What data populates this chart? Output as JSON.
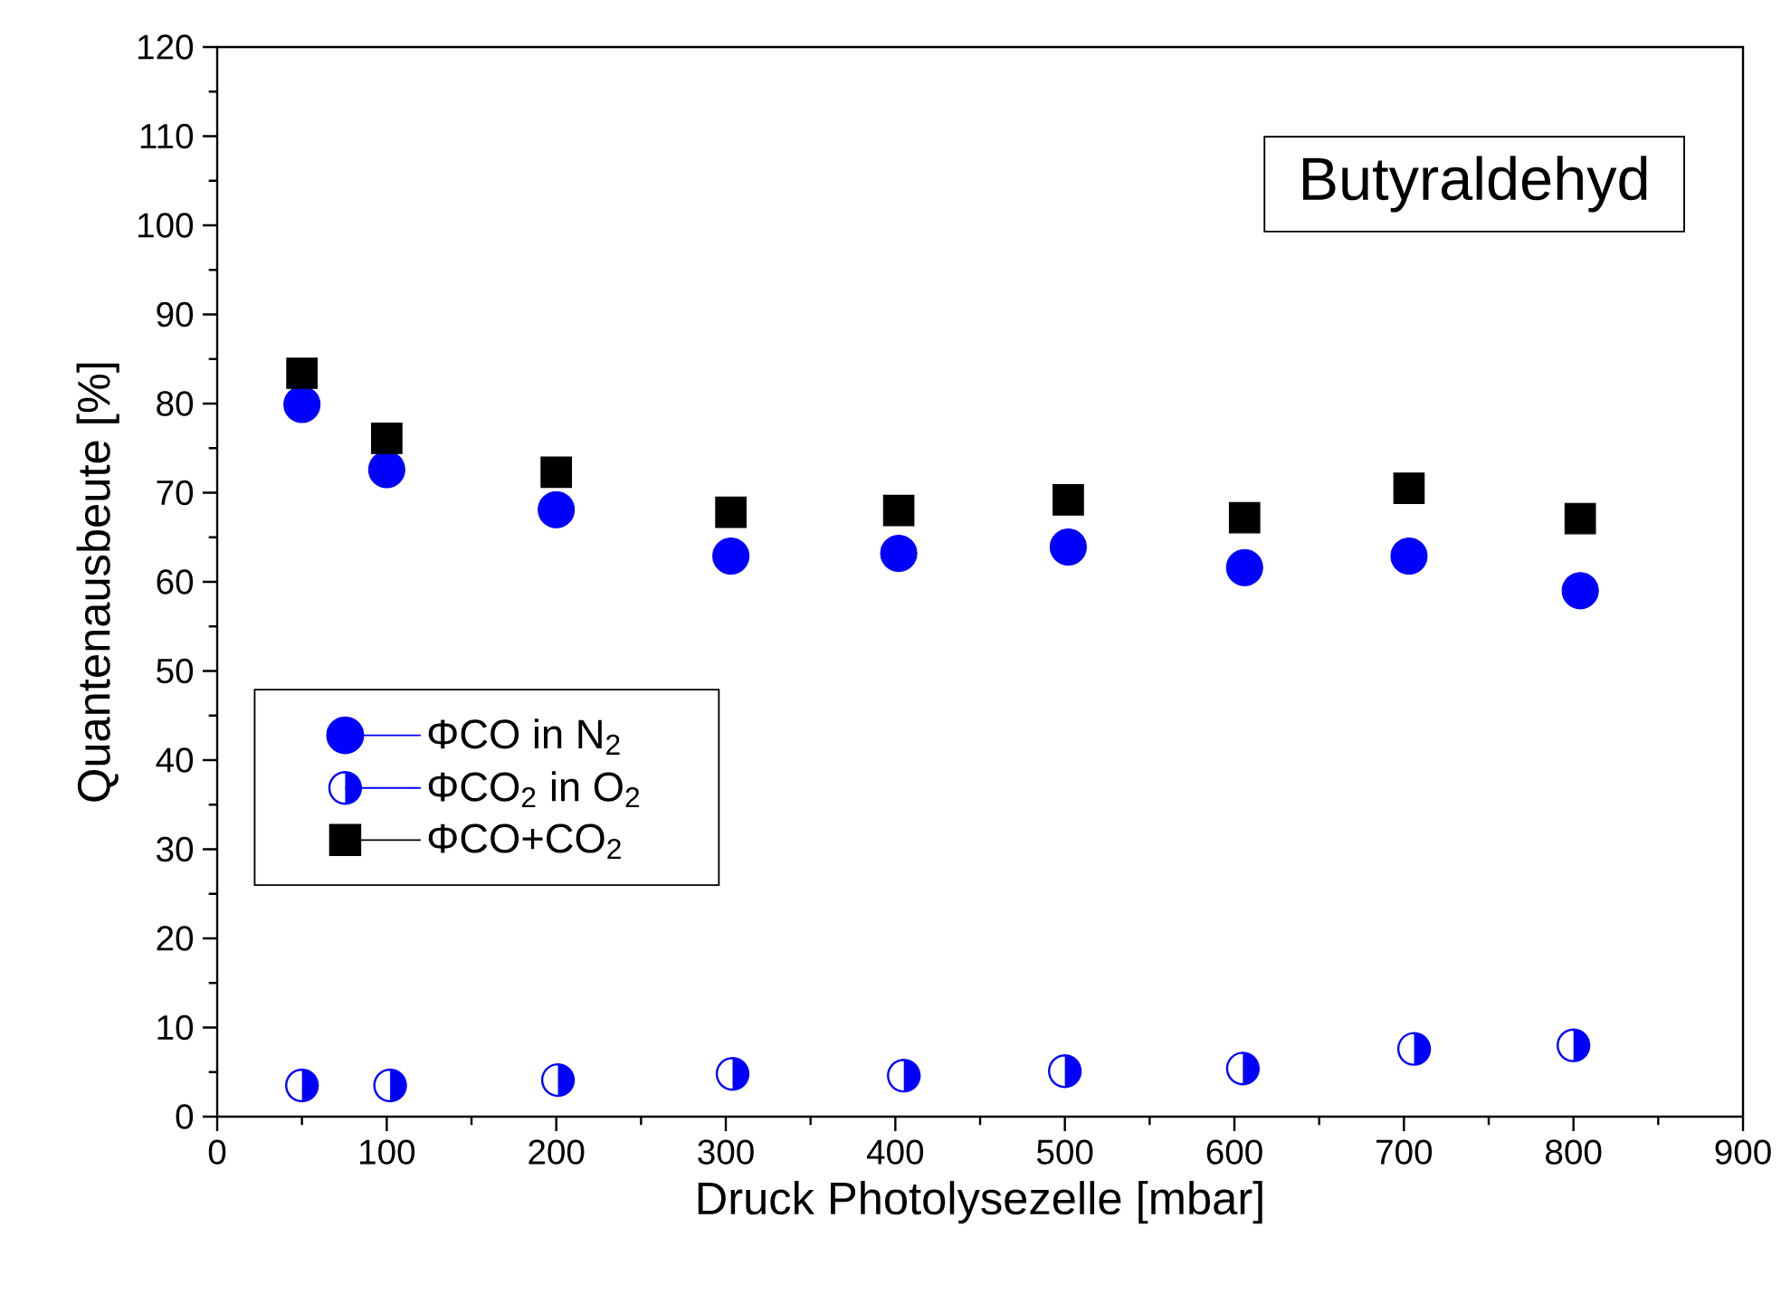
{
  "chart_data": {
    "type": "scatter",
    "title": "Butyraldehyd",
    "xlabel": "Druck Photolysezelle [mbar]",
    "ylabel": "Quantenausbeute [%]",
    "xlim": [
      0,
      900
    ],
    "xticks": [
      0,
      100,
      200,
      300,
      400,
      500,
      600,
      700,
      800,
      900
    ],
    "ylim": [
      0,
      120
    ],
    "yticks": [
      0,
      10,
      20,
      30,
      40,
      50,
      60,
      70,
      80,
      90,
      100,
      110,
      120
    ],
    "legend": "left",
    "series": [
      {
        "name": "ΦCO in N$_{2}$",
        "color": "#0000ff",
        "marker": "circle",
        "x": [
          50,
          100,
          200,
          303,
          402,
          502,
          606,
          703,
          804
        ],
        "values": [
          79.9,
          72.6,
          68.1,
          62.9,
          63.2,
          63.9,
          61.6,
          62.9,
          59.0
        ]
      },
      {
        "name": "ΦCO$_{2}$ in O$_{2}$",
        "color": "#0000ff",
        "marker": "half circle",
        "x": [
          50,
          102,
          201,
          304,
          405,
          500,
          605,
          706,
          800
        ],
        "values": [
          3.5,
          3.5,
          4.1,
          4.8,
          4.6,
          5.1,
          5.4,
          7.6,
          8.0
        ]
      },
      {
        "name": "ΦCO+CO$_{2}$",
        "color": "#000000",
        "marker": "square",
        "x": [
          50,
          100,
          200,
          303,
          402,
          502,
          606,
          703,
          804
        ],
        "values": [
          83.4,
          76.1,
          72.3,
          67.8,
          68.0,
          69.2,
          67.2,
          70.5,
          67.1
        ]
      }
    ]
  }
}
